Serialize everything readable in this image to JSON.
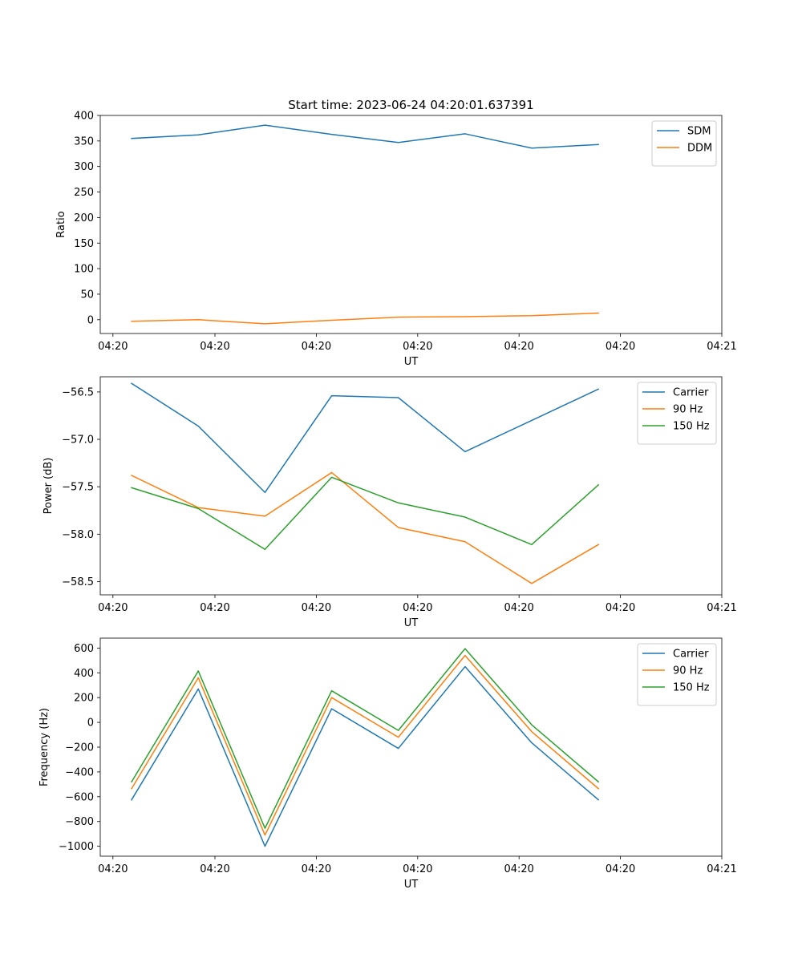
{
  "title": "Start time: 2023-06-24 04:20:01.637391",
  "chart_data": [
    {
      "type": "line",
      "title": "Start time: 2023-06-24 04:20:01.637391",
      "xlabel": "UT",
      "ylabel": "Ratio",
      "x": [
        1,
        2,
        3,
        4,
        5,
        6,
        7,
        8
      ],
      "xlim": [
        0.53,
        9.85
      ],
      "xticks": [
        0.72,
        2.25,
        3.77,
        5.29,
        6.81,
        8.33,
        9.85
      ],
      "xtick_labels": [
        "04:20",
        "04:20",
        "04:20",
        "04:20",
        "04:20",
        "04:20",
        "04:21"
      ],
      "ylim": [
        -27,
        400
      ],
      "yticks": [
        0,
        50,
        100,
        150,
        200,
        250,
        300,
        350,
        400
      ],
      "ytick_labels": [
        "0",
        "50",
        "100",
        "150",
        "200",
        "250",
        "300",
        "350",
        "400"
      ],
      "legend": "top-right",
      "series": [
        {
          "name": "SDM",
          "color": "#1f77b4",
          "values": [
            355,
            362,
            381,
            363,
            347,
            364,
            336,
            343
          ]
        },
        {
          "name": "DDM",
          "color": "#ff7f0e",
          "values": [
            -3,
            0,
            -8,
            -1,
            5,
            6,
            8,
            13
          ]
        }
      ]
    },
    {
      "type": "line",
      "title": "",
      "xlabel": "UT",
      "ylabel": "Power (dB)",
      "x": [
        1,
        2,
        3,
        4,
        5,
        6,
        7,
        8
      ],
      "xlim": [
        0.53,
        9.85
      ],
      "xticks": [
        0.72,
        2.25,
        3.77,
        5.29,
        6.81,
        8.33,
        9.85
      ],
      "xtick_labels": [
        "04:20",
        "04:20",
        "04:20",
        "04:20",
        "04:20",
        "04:20",
        "04:21"
      ],
      "ylim": [
        -58.64,
        -56.34
      ],
      "yticks": [
        -58.5,
        -58.0,
        -57.5,
        -57.0,
        -56.5
      ],
      "ytick_labels": [
        "−58.5",
        "−58.0",
        "−57.5",
        "−57.0",
        "−56.5"
      ],
      "legend": "top-right",
      "series": [
        {
          "name": "Carrier",
          "color": "#1f77b4",
          "values": [
            -56.41,
            -56.86,
            -57.56,
            -56.54,
            -56.56,
            -57.13,
            -56.8,
            -56.47
          ]
        },
        {
          "name": "90 Hz",
          "color": "#ff7f0e",
          "values": [
            -57.38,
            -57.72,
            -57.81,
            -57.35,
            -57.93,
            -58.08,
            -58.52,
            -58.11
          ]
        },
        {
          "name": "150 Hz",
          "color": "#2ca02c",
          "values": [
            -57.51,
            -57.73,
            -58.16,
            -57.4,
            -57.67,
            -57.82,
            -58.11,
            -57.48
          ]
        }
      ]
    },
    {
      "type": "line",
      "title": "",
      "xlabel": "UT",
      "ylabel": "Frequency (Hz)",
      "x": [
        1,
        2,
        3,
        4,
        5,
        6,
        7,
        8
      ],
      "xlim": [
        0.53,
        9.85
      ],
      "xticks": [
        0.72,
        2.25,
        3.77,
        5.29,
        6.81,
        8.33,
        9.85
      ],
      "xtick_labels": [
        "04:20",
        "04:20",
        "04:20",
        "04:20",
        "04:20",
        "04:20",
        "04:21"
      ],
      "ylim": [
        -1080,
        680
      ],
      "yticks": [
        -1000,
        -800,
        -600,
        -400,
        -200,
        0,
        200,
        400,
        600
      ],
      "ytick_labels": [
        "−1000",
        "−800",
        "−600",
        "−400",
        "−200",
        "0",
        "200",
        "400",
        "600"
      ],
      "legend": "top-right",
      "series": [
        {
          "name": "Carrier",
          "color": "#1f77b4",
          "values": [
            -625,
            270,
            -1000,
            110,
            -210,
            450,
            -165,
            -625
          ]
        },
        {
          "name": "90 Hz",
          "color": "#ff7f0e",
          "values": [
            -535,
            360,
            -910,
            200,
            -120,
            540,
            -75,
            -535
          ]
        },
        {
          "name": "150 Hz",
          "color": "#2ca02c",
          "values": [
            -480,
            415,
            -855,
            255,
            -65,
            595,
            -20,
            -480
          ]
        }
      ]
    }
  ]
}
